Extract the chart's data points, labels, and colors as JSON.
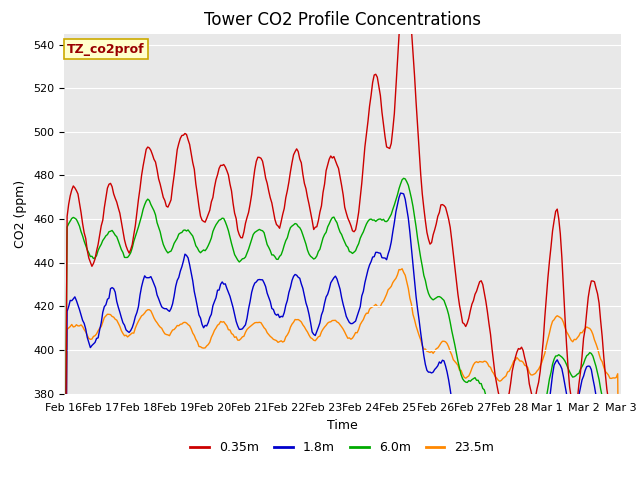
{
  "title": "Tower CO2 Profile Concentrations",
  "xlabel": "Time",
  "ylabel": "CO2 (ppm)",
  "ylim": [
    380,
    545
  ],
  "yticks": [
    380,
    400,
    420,
    440,
    460,
    480,
    500,
    520,
    540
  ],
  "bg_color": "#e8e8e8",
  "legend_label": "TZ_co2prof",
  "series_labels": [
    "0.35m",
    "1.8m",
    "6.0m",
    "23.5m"
  ],
  "series_colors": [
    "#cc0000",
    "#0000cc",
    "#00aa00",
    "#ff8800"
  ],
  "date_labels": [
    "Feb 16",
    "Feb 17",
    "Feb 18",
    "Feb 19",
    "Feb 20",
    "Feb 21",
    "Feb 22",
    "Feb 23",
    "Feb 24",
    "Feb 25",
    "Feb 26",
    "Feb 27",
    "Feb 28",
    "Mar 1",
    "Mar 2",
    "Mar 3"
  ],
  "title_fontsize": 12,
  "axis_label_fontsize": 9,
  "tick_fontsize": 8,
  "legend_fontsize": 9,
  "linewidth": 1.0,
  "figsize": [
    6.4,
    4.8
  ],
  "dpi": 100
}
